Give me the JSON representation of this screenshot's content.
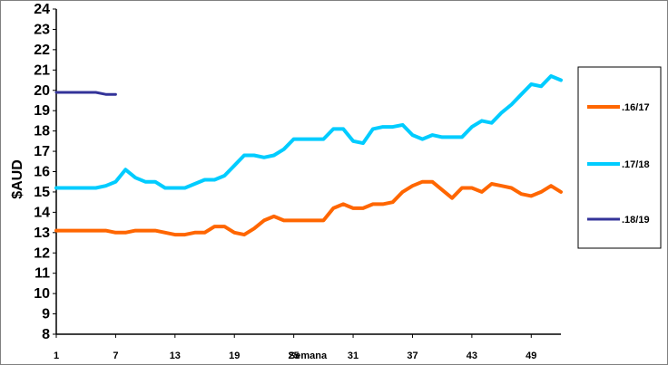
{
  "chart_data": {
    "type": "line",
    "ylabel": "$AUD",
    "xlabel": "Semana",
    "ylim": [
      8,
      24
    ],
    "xlim": [
      1,
      52
    ],
    "y_ticks": [
      8,
      9,
      10,
      11,
      12,
      13,
      14,
      15,
      16,
      17,
      18,
      19,
      20,
      21,
      22,
      23,
      24
    ],
    "x_ticks": [
      1,
      7,
      13,
      19,
      25,
      31,
      37,
      43,
      49
    ],
    "grid": false,
    "legend_position": "right",
    "series": [
      {
        "name": ".16/17",
        "color": "#FF6600",
        "x": [
          1,
          2,
          3,
          4,
          5,
          6,
          7,
          8,
          9,
          10,
          11,
          12,
          13,
          14,
          15,
          16,
          17,
          18,
          19,
          20,
          21,
          22,
          23,
          24,
          25,
          26,
          27,
          28,
          29,
          30,
          31,
          32,
          33,
          34,
          35,
          36,
          37,
          38,
          39,
          40,
          41,
          42,
          43,
          44,
          45,
          46,
          47,
          48,
          49,
          50,
          51,
          52
        ],
        "values": [
          13.1,
          13.1,
          13.1,
          13.1,
          13.1,
          13.1,
          13.0,
          13.0,
          13.1,
          13.1,
          13.1,
          13.0,
          12.9,
          12.9,
          13.0,
          13.0,
          13.3,
          13.3,
          13.0,
          12.9,
          13.2,
          13.6,
          13.8,
          13.6,
          13.6,
          13.6,
          13.6,
          13.6,
          14.2,
          14.4,
          14.2,
          14.2,
          14.4,
          14.4,
          14.5,
          15.0,
          15.3,
          15.5,
          15.5,
          15.1,
          14.7,
          15.2,
          15.2,
          15.0,
          15.4,
          15.3,
          15.2,
          14.9,
          14.8,
          15.0,
          15.3,
          15.0
        ]
      },
      {
        "name": ".17/18",
        "color": "#00CCFF",
        "x": [
          1,
          2,
          3,
          4,
          5,
          6,
          7,
          8,
          9,
          10,
          11,
          12,
          13,
          14,
          15,
          16,
          17,
          18,
          19,
          20,
          21,
          22,
          23,
          24,
          25,
          26,
          27,
          28,
          29,
          30,
          31,
          32,
          33,
          34,
          35,
          36,
          37,
          38,
          39,
          40,
          41,
          42,
          43,
          44,
          45,
          46,
          47,
          48,
          49,
          50,
          51,
          52
        ],
        "values": [
          15.2,
          15.2,
          15.2,
          15.2,
          15.2,
          15.3,
          15.5,
          16.1,
          15.7,
          15.5,
          15.5,
          15.2,
          15.2,
          15.2,
          15.4,
          15.6,
          15.6,
          15.8,
          16.3,
          16.8,
          16.8,
          16.7,
          16.8,
          17.1,
          17.6,
          17.6,
          17.6,
          17.6,
          18.1,
          18.1,
          17.5,
          17.4,
          18.1,
          18.2,
          18.2,
          18.3,
          17.8,
          17.6,
          17.8,
          17.7,
          17.7,
          17.7,
          18.2,
          18.5,
          18.4,
          18.9,
          19.3,
          19.8,
          20.3,
          20.2,
          20.7,
          20.5
        ]
      },
      {
        "name": ".18/19",
        "color": "#333399",
        "x": [
          1,
          2,
          3,
          4,
          5,
          6,
          7
        ],
        "values": [
          19.9,
          19.9,
          19.9,
          19.9,
          19.9,
          19.8,
          19.8
        ]
      }
    ]
  }
}
